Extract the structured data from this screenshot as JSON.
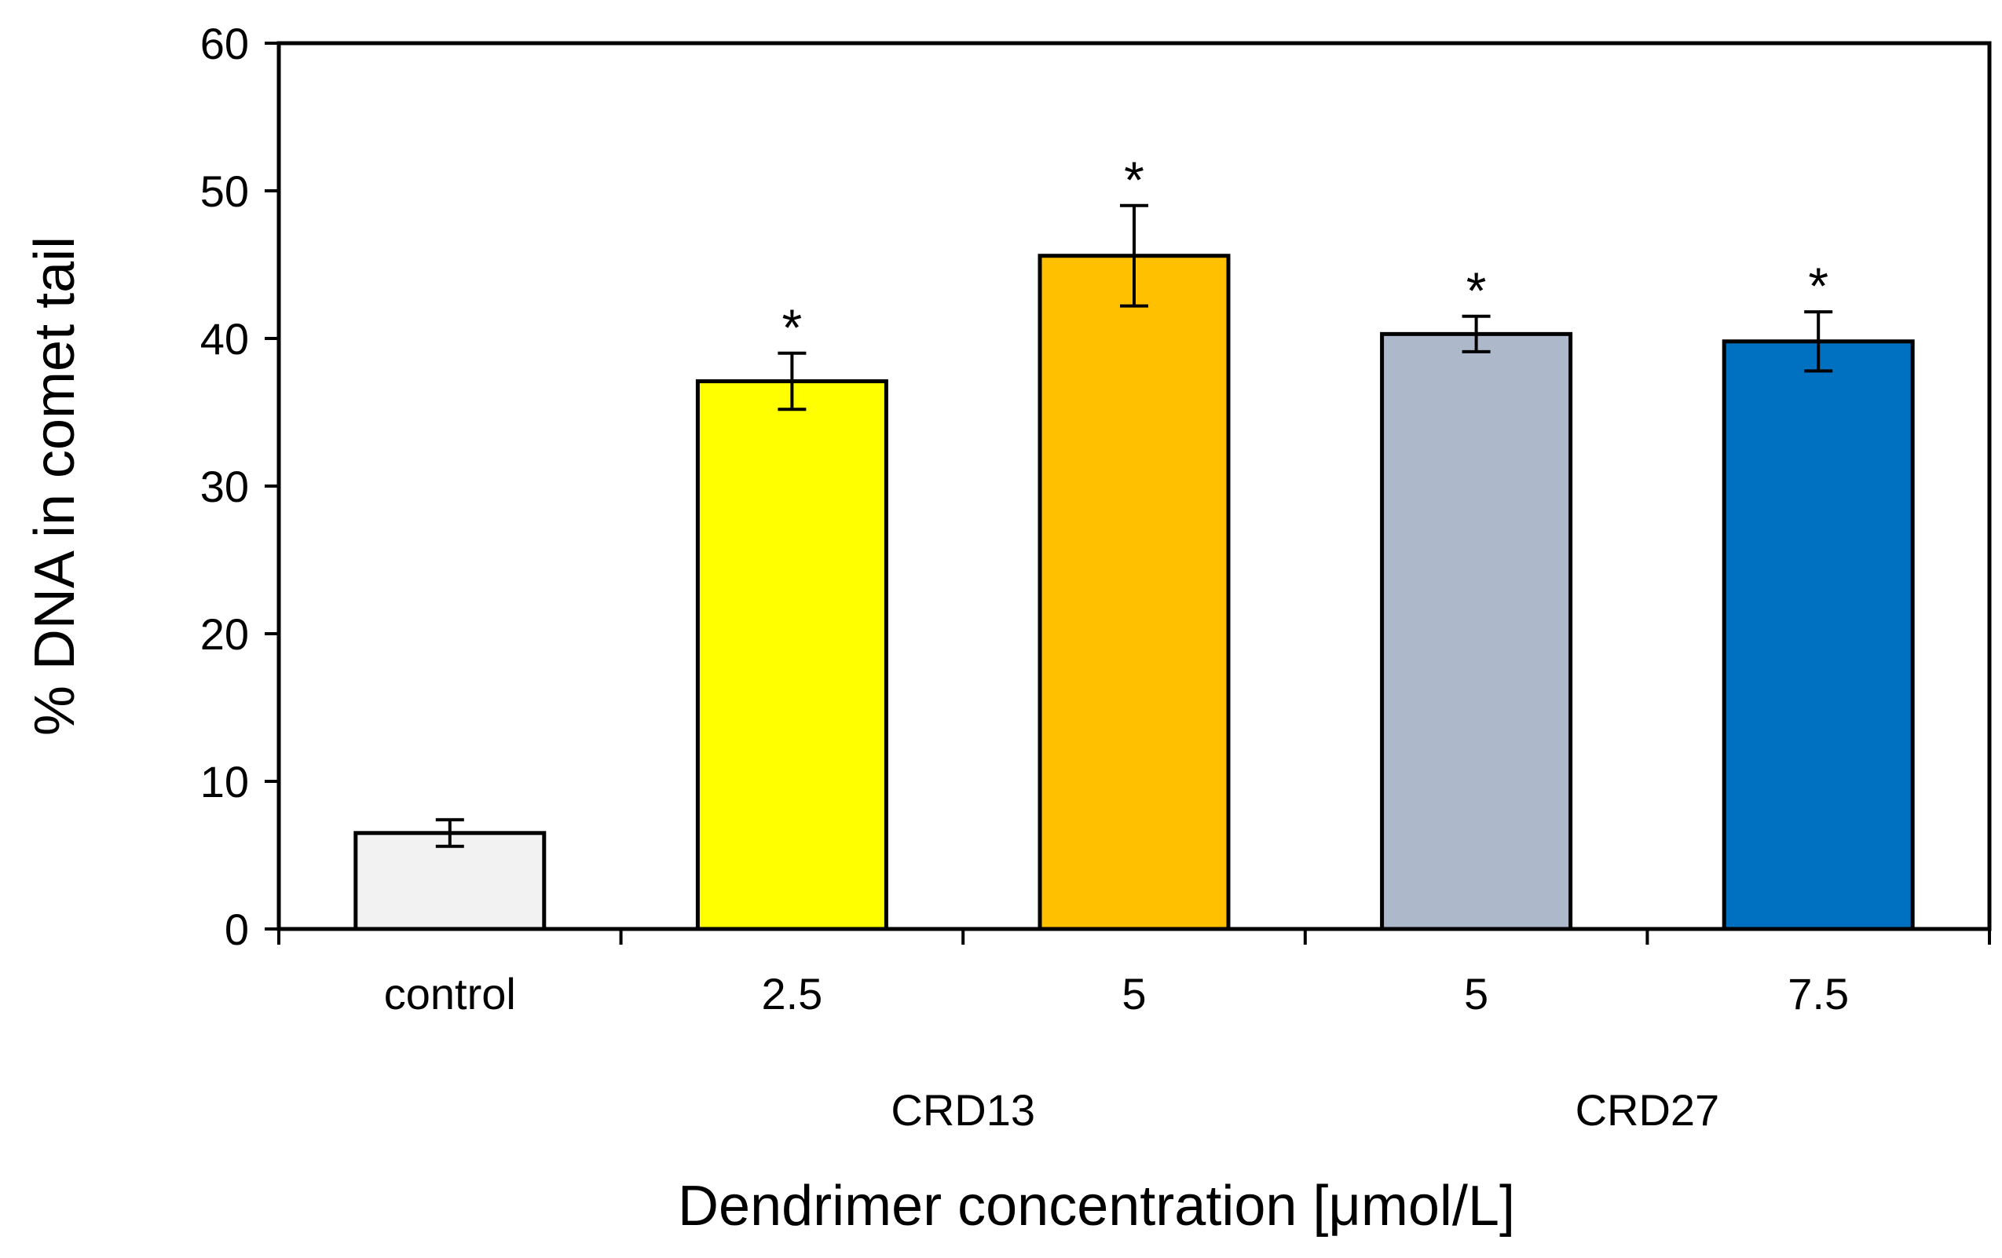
{
  "chart_data": {
    "type": "bar",
    "title": "",
    "xlabel": "Dendrimer concentration [μmol/L]",
    "ylabel": "% DNA in comet tail",
    "ylim": [
      0,
      60
    ],
    "yticks": [
      0,
      10,
      20,
      30,
      40,
      50,
      60
    ],
    "grid": false,
    "legend": "none",
    "categories": [
      "control",
      "2.5",
      "5",
      "5",
      "7.5"
    ],
    "values": [
      6.5,
      37.1,
      45.6,
      40.3,
      39.8
    ],
    "errors": [
      0.9,
      1.9,
      3.4,
      1.2,
      2.0
    ],
    "significance": [
      "",
      "*",
      "*",
      "*",
      "*"
    ],
    "colors": [
      "#f2f2f2",
      "#ffff00",
      "#ffc000",
      "#adb9ca",
      "#0070c0"
    ],
    "groups": [
      {
        "label": "CRD13",
        "categories": [
          1,
          2
        ]
      },
      {
        "label": "CRD27",
        "categories": [
          3,
          4
        ]
      }
    ]
  }
}
